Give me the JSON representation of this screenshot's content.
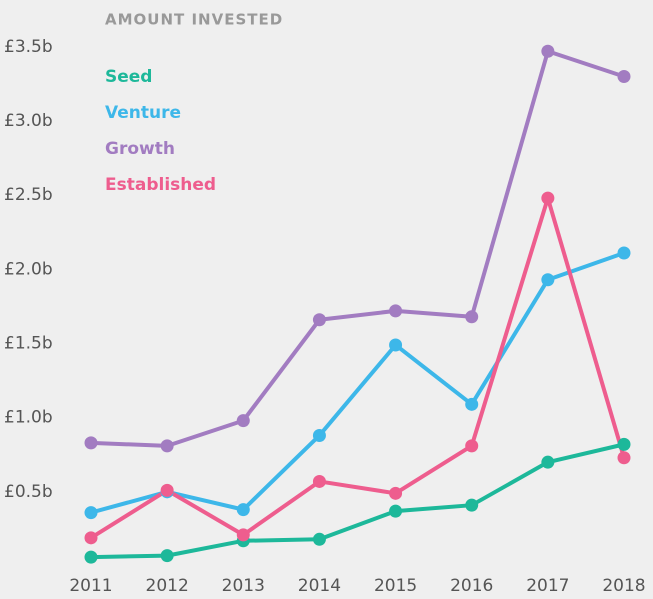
{
  "chart_data": {
    "type": "line",
    "title": "AMOUNT INVESTED",
    "x": [
      2011,
      2012,
      2013,
      2014,
      2015,
      2016,
      2017,
      2018
    ],
    "xlim": [
      2011,
      2018
    ],
    "xticks": [
      2011,
      2012,
      2013,
      2014,
      2015,
      2016,
      2017,
      2018
    ],
    "ylim": [
      0,
      3.6
    ],
    "yticks": [
      {
        "value": 0.5,
        "label": "£0.5b"
      },
      {
        "value": 1.0,
        "label": "£1.0b"
      },
      {
        "value": 1.5,
        "label": "£1.5b"
      },
      {
        "value": 2.0,
        "label": "£2.0b"
      },
      {
        "value": 2.5,
        "label": "£2.5b"
      },
      {
        "value": 3.0,
        "label": "£3.0b"
      },
      {
        "value": 3.5,
        "label": "£3.5b"
      }
    ],
    "grid": false,
    "legend": "top-left",
    "series": [
      {
        "name": "Seed",
        "color": "#1db89a",
        "values": [
          0.06,
          0.07,
          0.17,
          0.18,
          0.37,
          0.41,
          0.7,
          0.82
        ]
      },
      {
        "name": "Venture",
        "color": "#3db7e9",
        "values": [
          0.36,
          0.5,
          0.38,
          0.88,
          1.49,
          1.09,
          1.93,
          2.11
        ]
      },
      {
        "name": "Growth",
        "color": "#a27cc1",
        "values": [
          0.83,
          0.81,
          0.98,
          1.66,
          1.72,
          1.68,
          3.47,
          3.3
        ]
      },
      {
        "name": "Established",
        "color": "#ee5d8e",
        "values": [
          0.19,
          0.51,
          0.21,
          0.57,
          0.49,
          0.81,
          2.48,
          0.73
        ]
      }
    ]
  }
}
